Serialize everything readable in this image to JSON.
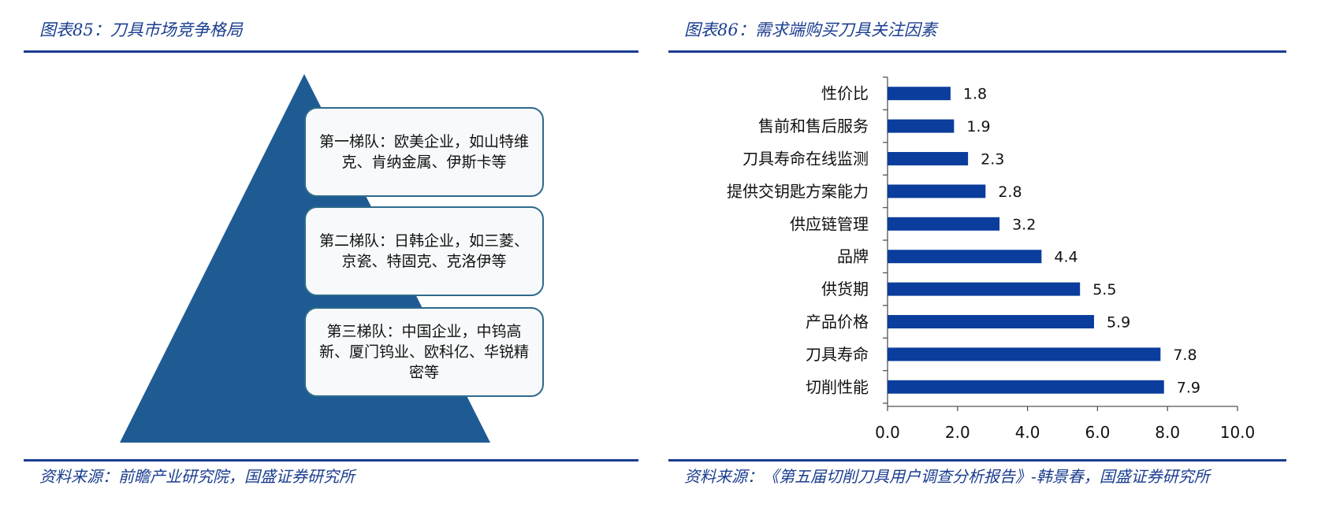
{
  "left_panel": {
    "title": "图表85：刀具市场竞争格局",
    "tiers": [
      "第一梯队：欧美企业，如山特维克、肯纳金属、伊斯卡等",
      "第二梯队：日韩企业，如三菱、京瓷、特固克、克洛伊等",
      "第三梯队：中国企业，中钨高新、厦门钨业、欧科亿、华锐精密等"
    ],
    "source": "资料来源：前瞻产业研究院，国盛证券研究所"
  },
  "right_panel": {
    "title": "图表86：需求端购买刀具关注因素",
    "source": "资料来源：《第五届切削刀具用户调查分析报告》-韩景春，国盛证券研究所"
  },
  "colors": {
    "accent": "#1a3d8f",
    "bar": "#0b3d9c",
    "pyramid": "#1f5b93",
    "box_border": "#2d6b8c"
  },
  "chart_data": {
    "type": "bar",
    "orientation": "horizontal",
    "categories": [
      "性价比",
      "售前和售后服务",
      "刀具寿命在线监测",
      "提供交钥匙方案能力",
      "供应链管理",
      "品牌",
      "供货期",
      "产品价格",
      "刀具寿命",
      "切削性能"
    ],
    "values": [
      1.8,
      1.9,
      2.3,
      2.8,
      3.2,
      4.4,
      5.5,
      5.9,
      7.8,
      7.9
    ],
    "value_labels": [
      "1.8",
      "1.9",
      "2.3",
      "2.8",
      "3.2",
      "4.4",
      "5.5",
      "5.9",
      "7.8",
      "7.9"
    ],
    "xlim": [
      0,
      10
    ],
    "xticks": [
      "0.0",
      "2.0",
      "4.0",
      "6.0",
      "8.0",
      "10.0"
    ],
    "grid": false,
    "legend": false
  }
}
